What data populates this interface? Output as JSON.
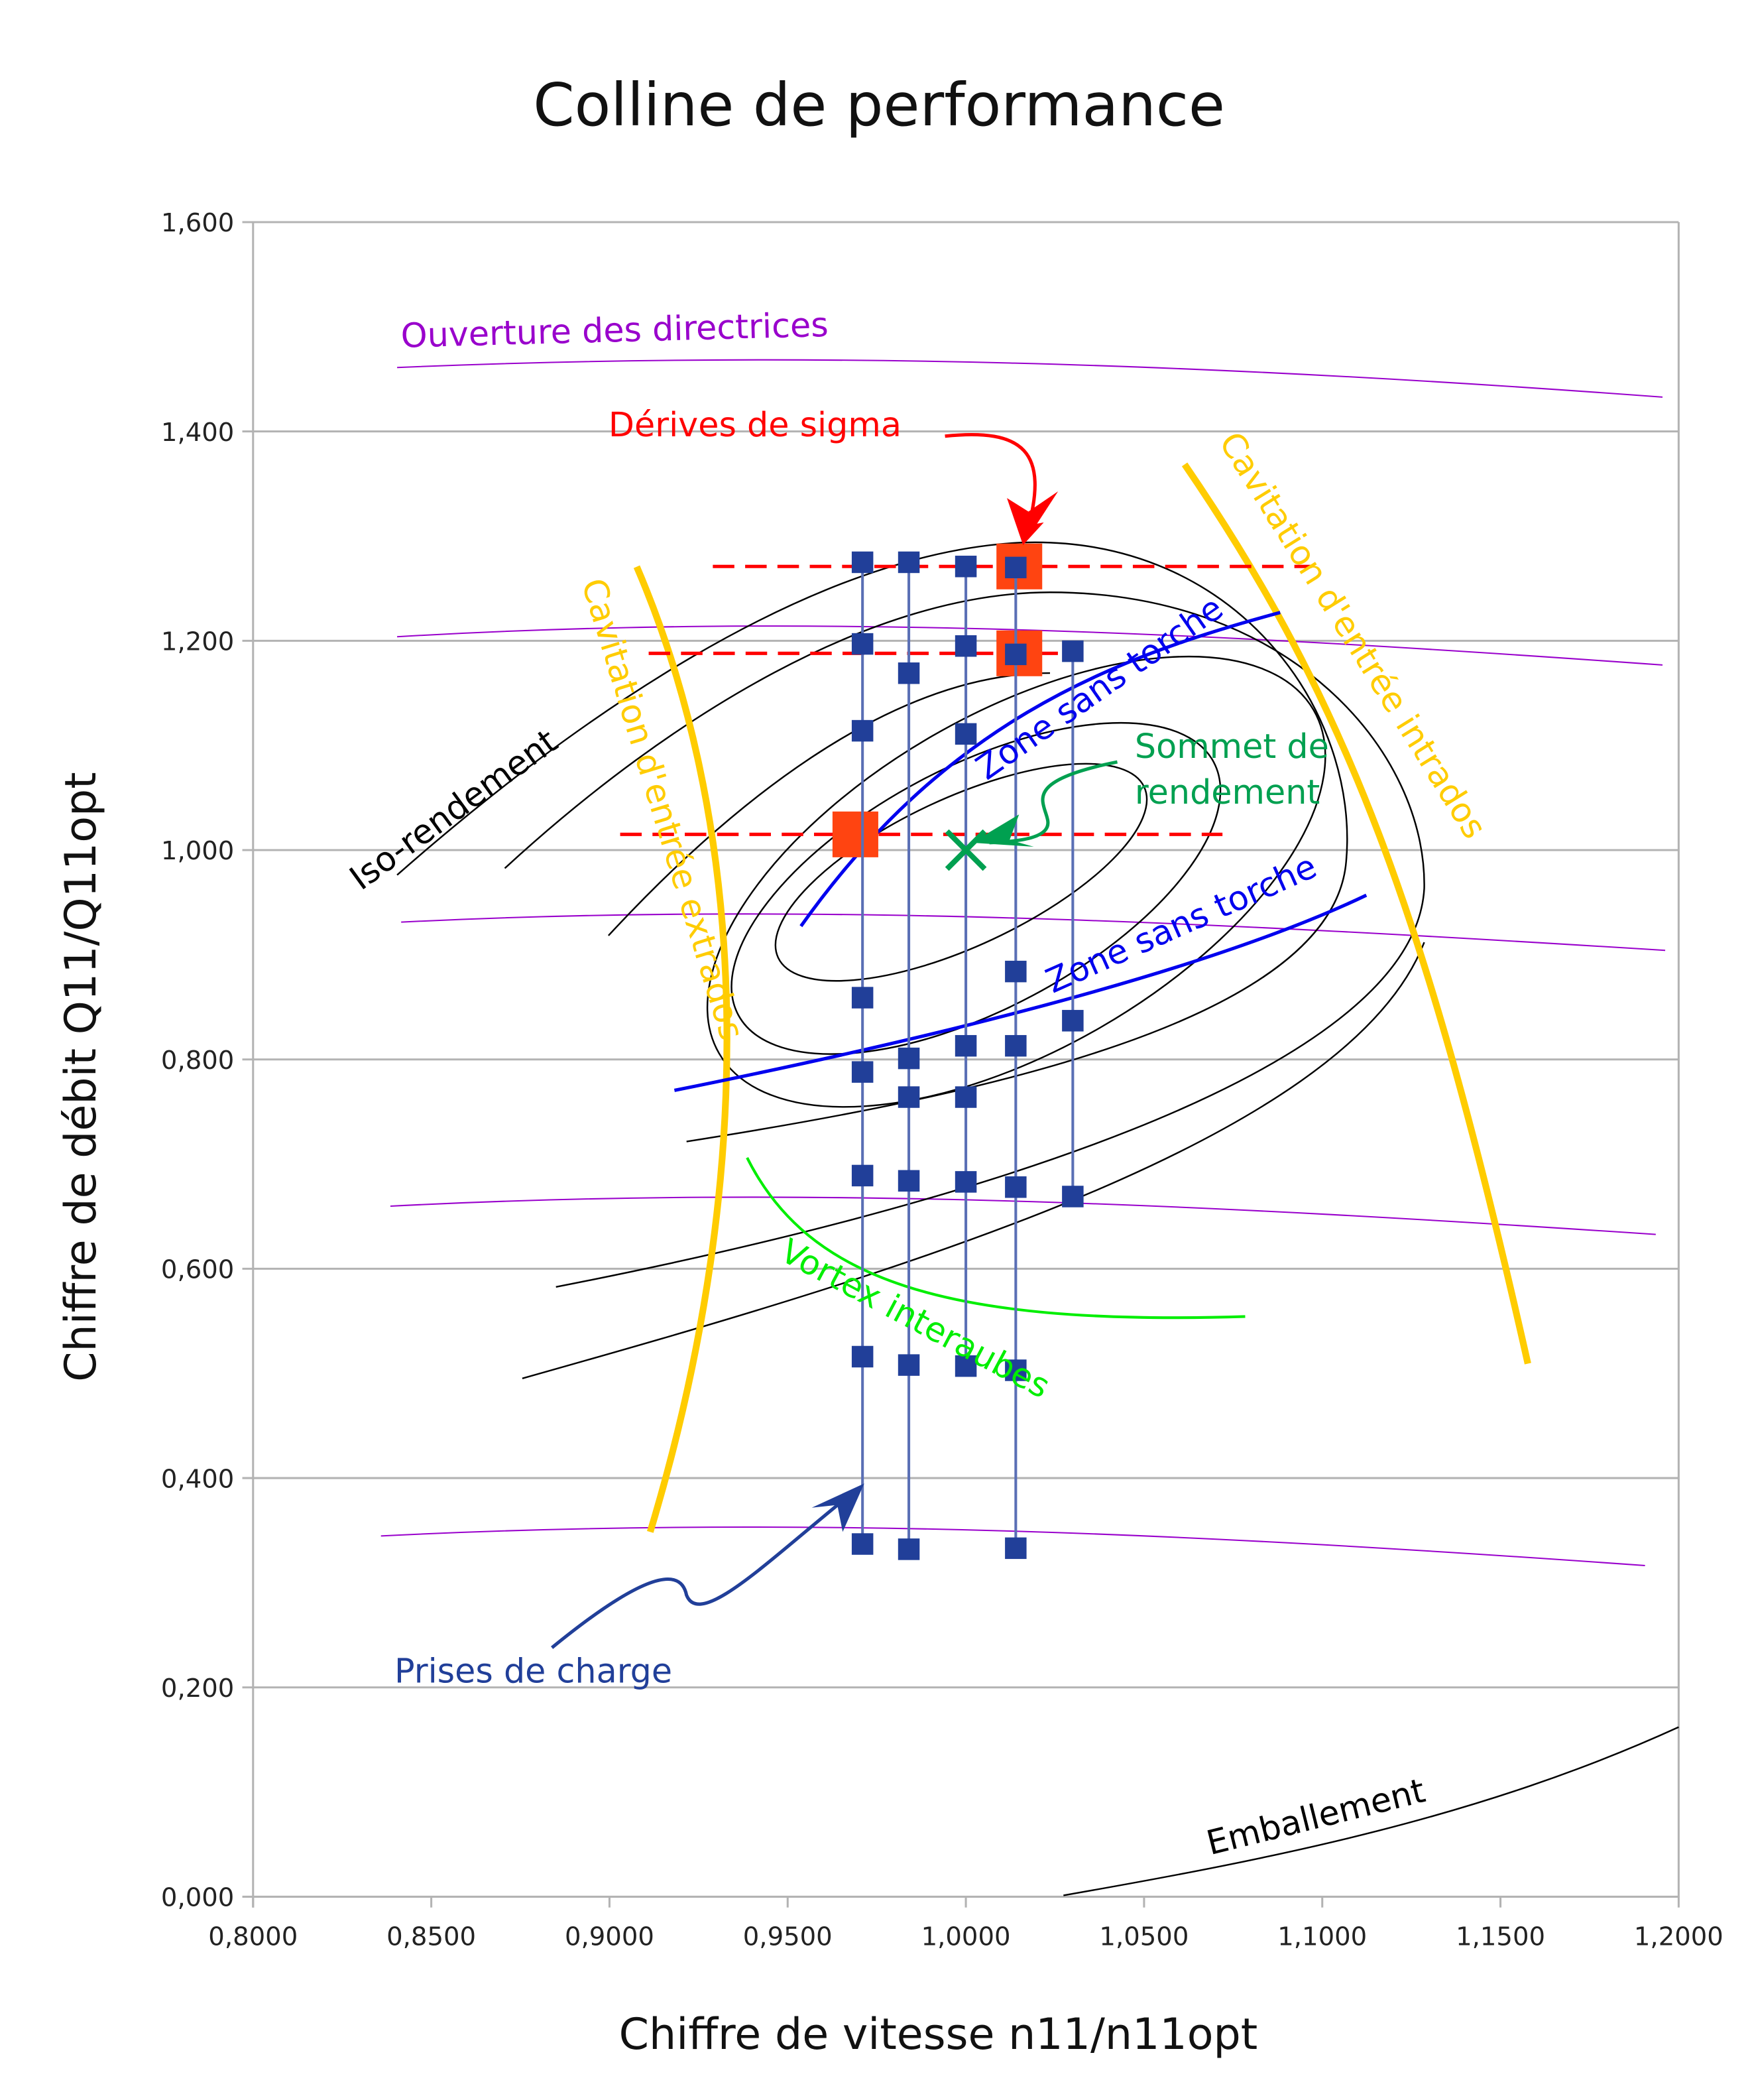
{
  "chart_data": {
    "type": "scatter",
    "title": "Colline de performance",
    "xlabel": "Chiffre de vitesse n11/n11opt",
    "ylabel": "Chiffre de débit Q11/Q11opt",
    "xlim": [
      0.8,
      1.2
    ],
    "ylim": [
      0.0,
      1.6
    ],
    "xticks": [
      "0,8000",
      "0,8500",
      "0,9000",
      "0,9500",
      "1,0000",
      "1,0500",
      "1,1000",
      "1,1500",
      "1,2000"
    ],
    "yticks": [
      "0,000",
      "0,200",
      "0,400",
      "0,600",
      "0,800",
      "1,000",
      "1,200",
      "1,400",
      "1,600"
    ],
    "grid": "horizontal",
    "series": [
      {
        "x": 0.971,
        "y": [
          1.275,
          1.197,
          1.114,
          0.859,
          0.788,
          0.689,
          0.516,
          0.337
        ]
      },
      {
        "x": 0.984,
        "y": [
          1.275,
          1.169,
          0.801,
          0.764,
          0.684,
          0.508,
          0.332
        ]
      },
      {
        "x": 1.0,
        "y": [
          1.271,
          1.195,
          1.111,
          0.813,
          0.764,
          0.683,
          0.507
        ]
      },
      {
        "x": 1.014,
        "y": [
          1.27,
          1.187,
          0.884,
          0.813,
          0.678,
          0.503,
          0.333
        ]
      },
      {
        "x": 1.03,
        "y": [
          1.19,
          0.837,
          0.669
        ]
      }
    ],
    "sigma_points": [
      {
        "x": 1.015,
        "y": 1.271
      },
      {
        "x": 1.015,
        "y": 1.188
      },
      {
        "x": 0.969,
        "y": 1.015
      }
    ],
    "sigma_lines": [
      {
        "y": 1.271,
        "x0": 0.929,
        "x1": 1.097
      },
      {
        "y": 1.188,
        "x0": 0.911,
        "x1": 1.033
      },
      {
        "y": 1.015,
        "x0": 0.903,
        "x1": 1.072
      }
    ],
    "best_efficiency": {
      "x": 1.0,
      "y": 1.0
    },
    "annotations": {
      "ouverture": "Ouverture des directrices",
      "derives": "Dérives de sigma",
      "iso": "Iso-rendement",
      "cav_extrados": "Cavitation d'entrée extrados",
      "cav_intrados": "Cavitation d'entrée intrados",
      "zone1": "Zone sans torche",
      "zone2": "Zone sans torche",
      "sommet1": "Sommet de",
      "sommet2": "rendement",
      "vortex": "Vortex interaubes",
      "prises": "Prises de charge",
      "emballement": "Emballement"
    },
    "colors": {
      "points": "#213f99",
      "sigma": "#ff4411",
      "ouverture": "#9900cc",
      "cavitation": "#ffcc00",
      "zone": "#0000ee",
      "sommet": "#00a050",
      "vortex": "#00ee00",
      "derives": "#ff0000"
    }
  }
}
